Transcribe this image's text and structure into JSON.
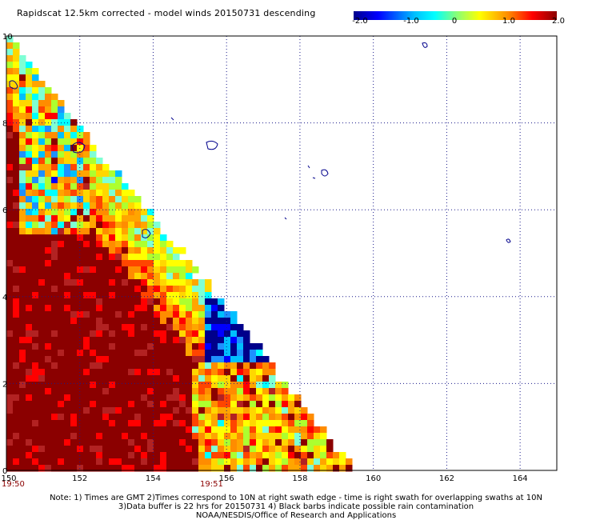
{
  "title": "Rapidscat 12.5km corrected - model winds 20150731 descending",
  "colorbar": {
    "labels": [
      "-2.0",
      "-1.0",
      "0",
      "1.0",
      "2.0"
    ],
    "colors": [
      "#00008b",
      "#0000ff",
      "#00bfff",
      "#00ffff",
      "#7fff7f",
      "#ffff00",
      "#ff8c00",
      "#ff0000",
      "#8b0000"
    ]
  },
  "axes": {
    "x_ticks": [
      "150",
      "152",
      "154",
      "156",
      "158",
      "160",
      "162",
      "164"
    ],
    "y_ticks": [
      "0",
      "2",
      "4",
      "6",
      "8",
      "10"
    ]
  },
  "times": {
    "left": "19:50",
    "right": "19:51"
  },
  "notes": {
    "line1": "Note: 1) Times are GMT 2)Times correspond to 10N at right swath edge - time is right swath for overlapping swaths at 10N",
    "line2": "3)Data buffer is 22 hrs for 20150731 4) Black barbs indicate possible rain contamination",
    "line3": "NOAA/NESDIS/Office of Research and Applications"
  },
  "map_data": {
    "lon_range": [
      150,
      165
    ],
    "lat_range": [
      0,
      10
    ],
    "swath_edge": [
      [
        150,
        10
      ],
      [
        159.5,
        0
      ]
    ],
    "field": "scatterometer minus model wind speed difference (m/s)",
    "regions": [
      {
        "desc": "positive bias",
        "lon": [
          150,
          155
        ],
        "lat": [
          0,
          10
        ],
        "value": 2.0
      },
      {
        "desc": "mixed",
        "lon": [
          150.5,
          152
        ],
        "lat": [
          6,
          9
        ],
        "value": 0.0
      },
      {
        "desc": "negative bias",
        "lon": [
          155.5,
          157.5
        ],
        "lat": [
          1.5,
          4
        ],
        "value": -2.0
      },
      {
        "desc": "moderate",
        "lon": [
          155,
          159
        ],
        "lat": [
          0,
          3
        ],
        "value": 0.5
      }
    ]
  }
}
